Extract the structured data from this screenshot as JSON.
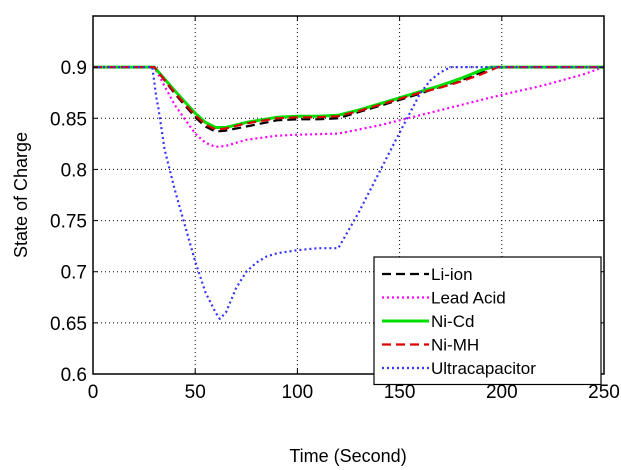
{
  "chart_data": {
    "type": "line",
    "xlabel": "Time (Second)",
    "ylabel": "State of Charge",
    "xlim": [
      0,
      250
    ],
    "ylim": [
      0.6,
      0.95
    ],
    "x_ticks": [
      0,
      50,
      100,
      150,
      200,
      250
    ],
    "y_ticks": [
      0.6,
      0.65,
      0.7,
      0.75,
      0.8,
      0.85,
      0.9
    ],
    "x_tick_labels": [
      "0",
      "50",
      "100",
      "150",
      "200",
      "250"
    ],
    "y_tick_labels": [
      "0.6",
      "0.65",
      "0.7",
      "0.75",
      "0.8",
      "0.85",
      "0.9"
    ],
    "grid": true,
    "grid_style": "dotted",
    "legend_position": "bottom-right",
    "series": [
      {
        "name": "Li-ion",
        "color": "#000000",
        "dash": "dashed",
        "x": [
          0,
          30,
          40,
          50,
          55,
          60,
          65,
          75,
          90,
          100,
          110,
          120,
          130,
          140,
          150,
          160,
          170,
          180,
          190,
          195,
          200,
          250
        ],
        "y": [
          0.9,
          0.9,
          0.874,
          0.851,
          0.842,
          0.837,
          0.838,
          0.842,
          0.848,
          0.849,
          0.849,
          0.85,
          0.856,
          0.862,
          0.868,
          0.874,
          0.881,
          0.887,
          0.895,
          0.9,
          0.9,
          0.9
        ]
      },
      {
        "name": "Lead Acid",
        "color": "#ff00ff",
        "dash": "dotted",
        "x": [
          0,
          30,
          40,
          50,
          55,
          60,
          65,
          75,
          90,
          100,
          120,
          140,
          160,
          180,
          200,
          220,
          240,
          250
        ],
        "y": [
          0.9,
          0.9,
          0.863,
          0.835,
          0.826,
          0.822,
          0.823,
          0.829,
          0.833,
          0.834,
          0.835,
          0.843,
          0.853,
          0.863,
          0.873,
          0.882,
          0.893,
          0.9
        ]
      },
      {
        "name": "Ni-Cd",
        "color": "#00dd00",
        "dash": "solid",
        "x": [
          0,
          30,
          40,
          50,
          55,
          60,
          65,
          75,
          90,
          100,
          110,
          120,
          130,
          140,
          150,
          160,
          170,
          180,
          190,
          195,
          250
        ],
        "y": [
          0.9,
          0.9,
          0.877,
          0.855,
          0.846,
          0.841,
          0.841,
          0.846,
          0.851,
          0.852,
          0.852,
          0.853,
          0.858,
          0.864,
          0.87,
          0.876,
          0.882,
          0.889,
          0.897,
          0.9,
          0.9
        ]
      },
      {
        "name": "Ni-MH",
        "color": "#dd0000",
        "dash": "dashed",
        "x": [
          0,
          30,
          40,
          50,
          55,
          60,
          65,
          75,
          90,
          100,
          110,
          120,
          130,
          140,
          150,
          160,
          170,
          180,
          190,
          198,
          250
        ],
        "y": [
          0.9,
          0.9,
          0.875,
          0.853,
          0.844,
          0.839,
          0.84,
          0.845,
          0.85,
          0.851,
          0.851,
          0.852,
          0.857,
          0.863,
          0.869,
          0.875,
          0.88,
          0.886,
          0.893,
          0.9,
          0.9
        ]
      },
      {
        "name": "Ultracapacitor",
        "color": "#3333ff",
        "dash": "dotted",
        "x": [
          0,
          29,
          31,
          32,
          35,
          40,
          45,
          50,
          55,
          60,
          62,
          65,
          70,
          75,
          80,
          85,
          90,
          100,
          110,
          120,
          130,
          140,
          150,
          160,
          165,
          170,
          175,
          180,
          190,
          250
        ],
        "y": [
          0.9,
          0.9,
          0.87,
          0.86,
          0.82,
          0.78,
          0.745,
          0.71,
          0.68,
          0.66,
          0.654,
          0.66,
          0.684,
          0.7,
          0.709,
          0.715,
          0.718,
          0.721,
          0.723,
          0.723,
          0.758,
          0.797,
          0.836,
          0.874,
          0.887,
          0.895,
          0.9,
          0.9,
          0.9,
          0.9
        ]
      }
    ]
  }
}
